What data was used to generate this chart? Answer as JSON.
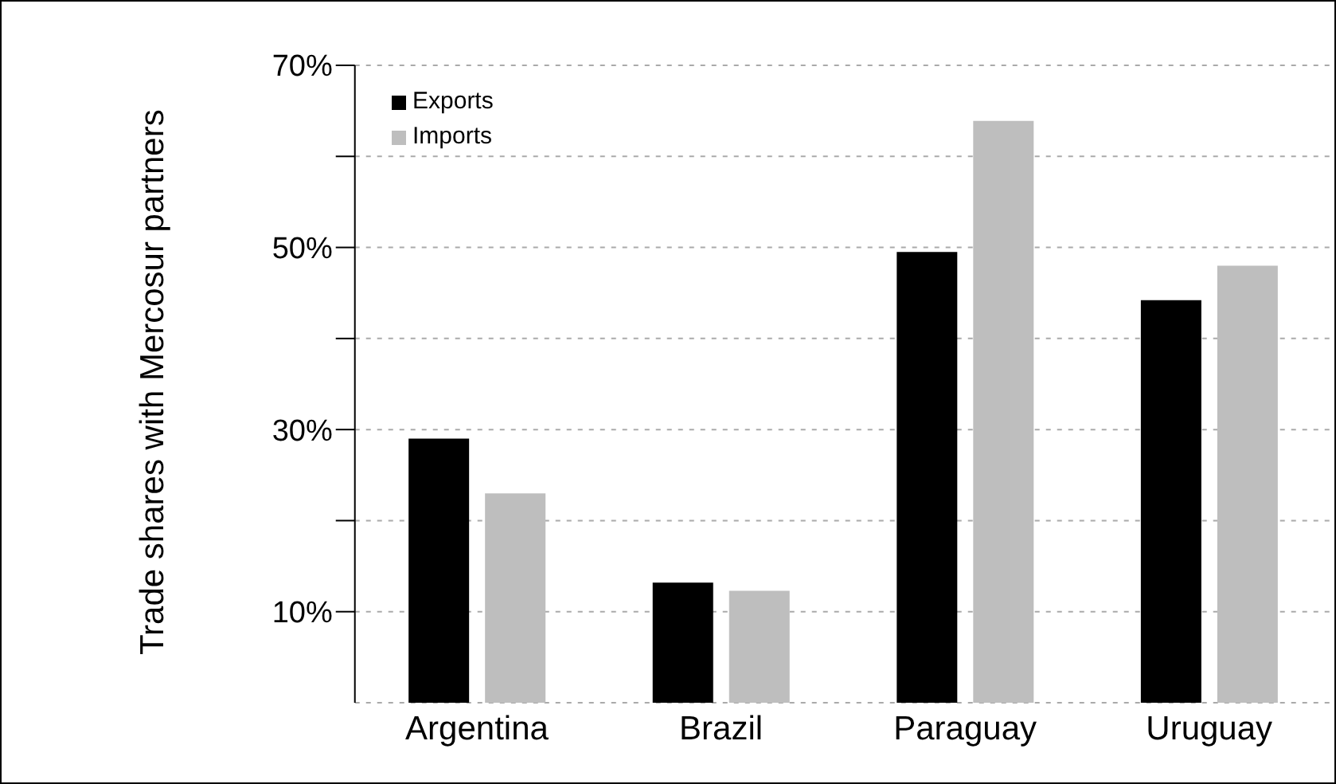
{
  "chart_data": {
    "type": "bar",
    "ylabel": "Trade shares with Mercosur partners",
    "categories": [
      "Argentina",
      "Brazil",
      "Paraguay",
      "Uruguay"
    ],
    "series": [
      {
        "name": "Exports",
        "color": "#000000",
        "values": [
          29.0,
          13.2,
          49.5,
          44.2
        ]
      },
      {
        "name": "Imports",
        "color": "#bebebe",
        "values": [
          23.0,
          12.3,
          63.9,
          48.0
        ]
      }
    ],
    "ylim": [
      0,
      70
    ],
    "yticks": [
      {
        "value": 10,
        "label": "10%"
      },
      {
        "value": 20,
        "label": null
      },
      {
        "value": 30,
        "label": "30%"
      },
      {
        "value": 40,
        "label": null
      },
      {
        "value": 50,
        "label": "50%"
      },
      {
        "value": 60,
        "label": null
      },
      {
        "value": 70,
        "label": "70%"
      }
    ],
    "grid": "y",
    "legend": "top left"
  }
}
